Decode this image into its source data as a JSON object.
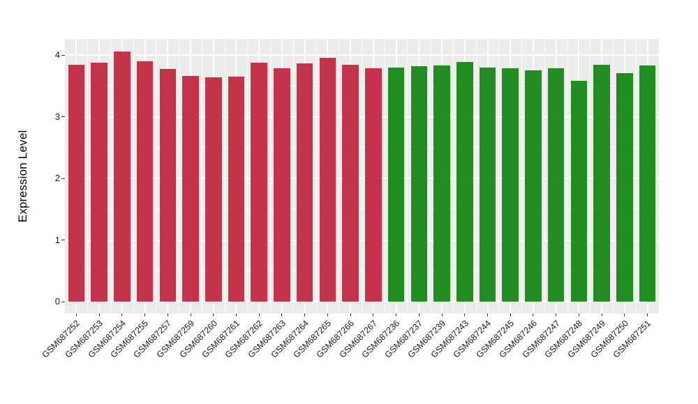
{
  "chart_data": {
    "type": "bar",
    "title": "",
    "xlabel": "",
    "ylabel": "Expression Level",
    "ylim": [
      -0.19,
      4.26
    ],
    "yticks": [
      0,
      1,
      2,
      3,
      4
    ],
    "yticks_minor": [
      0.5,
      1.5,
      2.5,
      3.5
    ],
    "grid": true,
    "legend_position": "none",
    "panel_bg": "#EBEBEB",
    "grid_color": "#FFFFFF",
    "axis_text_color": "#1A1A1A",
    "tick_color": "#333333",
    "bar_width_fraction": 0.72,
    "series": [
      {
        "name": "red-group",
        "color": "#C3344B",
        "categories": [
          "GSM687252",
          "GSM687253",
          "GSM687254",
          "GSM687255",
          "GSM687257",
          "GSM687259",
          "GSM687260",
          "GSM687261",
          "GSM687262",
          "GSM687263",
          "GSM687264",
          "GSM687265",
          "GSM687266",
          "GSM687267"
        ],
        "values": [
          3.84,
          3.88,
          4.06,
          3.9,
          3.77,
          3.66,
          3.64,
          3.65,
          3.88,
          3.78,
          3.86,
          3.95,
          3.84,
          3.79
        ]
      },
      {
        "name": "green-group",
        "color": "#228B22",
        "categories": [
          "GSM687236",
          "GSM687237",
          "GSM687239",
          "GSM687243",
          "GSM687244",
          "GSM687245",
          "GSM687246",
          "GSM687247",
          "GSM687248",
          "GSM687249",
          "GSM687250",
          "GSM687251"
        ],
        "values": [
          3.8,
          3.82,
          3.83,
          3.89,
          3.8,
          3.78,
          3.75,
          3.79,
          3.58,
          3.84,
          3.71,
          3.83
        ]
      }
    ]
  }
}
